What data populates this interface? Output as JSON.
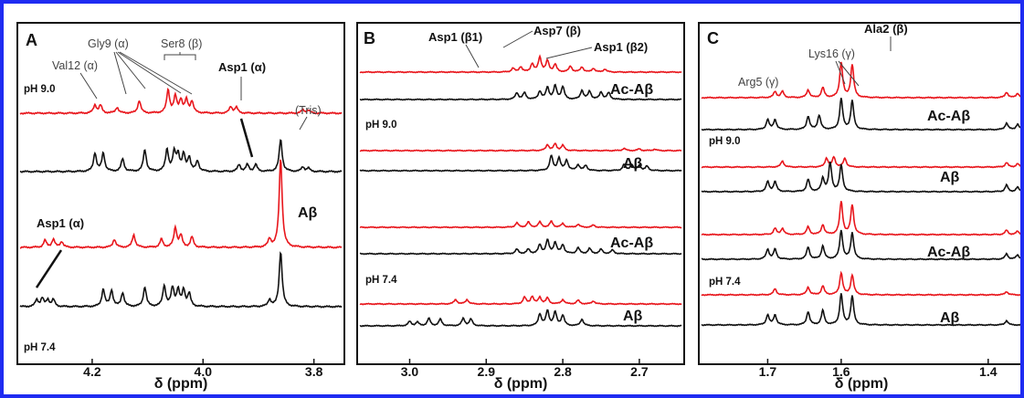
{
  "colors": {
    "frame": "#1f2cf2",
    "red": "#e8161c",
    "black": "#111111"
  },
  "chart_data": [
    {
      "type": "line",
      "panel": "A",
      "xlabel": "δ (ppm)",
      "xlim": [
        4.33,
        3.75
      ],
      "xticks": [
        "4.2",
        "4.0",
        "3.8"
      ],
      "tick_values": [
        4.2,
        4.0,
        3.8
      ],
      "series": [
        {
          "color": "red",
          "peaks": [
            [
              4.195,
              0.35
            ],
            [
              4.185,
              0.33
            ],
            [
              4.155,
              0.25
            ],
            [
              4.115,
              0.55
            ],
            [
              4.063,
              1.0
            ],
            [
              4.05,
              0.7
            ],
            [
              4.04,
              0.55
            ],
            [
              4.03,
              0.55
            ],
            [
              4.02,
              0.5
            ],
            [
              3.95,
              0.28
            ],
            [
              3.94,
              0.25
            ],
            [
              3.82,
              0.15
            ],
            [
              3.81,
              0.13
            ]
          ]
        },
        {
          "color": "black",
          "peaks": [
            [
              4.195,
              0.8
            ],
            [
              4.18,
              0.8
            ],
            [
              4.145,
              0.55
            ],
            [
              4.105,
              0.95
            ],
            [
              4.065,
              0.95
            ],
            [
              4.052,
              0.8
            ],
            [
              4.045,
              0.7
            ],
            [
              4.035,
              0.7
            ],
            [
              4.025,
              0.6
            ],
            [
              4.01,
              0.45
            ],
            [
              3.935,
              0.3
            ],
            [
              3.92,
              0.3
            ],
            [
              3.905,
              0.3
            ],
            [
              3.86,
              1.4
            ],
            [
              3.82,
              0.2
            ],
            [
              3.81,
              0.15
            ]
          ]
        },
        {
          "color": "red",
          "peaks": [
            [
              4.285,
              0.3
            ],
            [
              4.27,
              0.35
            ],
            [
              4.255,
              0.25
            ],
            [
              4.16,
              0.35
            ],
            [
              4.125,
              0.55
            ],
            [
              4.075,
              0.35
            ],
            [
              4.05,
              0.85
            ],
            [
              4.04,
              0.5
            ],
            [
              4.02,
              0.45
            ],
            [
              3.88,
              0.35
            ],
            [
              3.86,
              3.9
            ]
          ]
        },
        {
          "color": "black",
          "peaks": [
            [
              4.3,
              0.3
            ],
            [
              4.29,
              0.35
            ],
            [
              4.28,
              0.3
            ],
            [
              4.27,
              0.3
            ],
            [
              4.18,
              0.75
            ],
            [
              4.165,
              0.7
            ],
            [
              4.145,
              0.6
            ],
            [
              4.105,
              0.85
            ],
            [
              4.07,
              0.9
            ],
            [
              4.055,
              0.8
            ],
            [
              4.045,
              0.7
            ],
            [
              4.035,
              0.7
            ],
            [
              4.025,
              0.55
            ],
            [
              3.88,
              0.3
            ],
            [
              3.86,
              2.4
            ]
          ]
        }
      ]
    },
    {
      "type": "line",
      "panel": "B",
      "xlabel": "δ (ppm)",
      "xlim": [
        3.065,
        2.645
      ],
      "xticks": [
        "3.0",
        "2.9",
        "2.8",
        "2.7"
      ],
      "tick_values": [
        3.0,
        2.9,
        2.8,
        2.7
      ],
      "series": [
        {
          "color": "red",
          "peaks": [
            [
              2.865,
              0.25
            ],
            [
              2.855,
              0.35
            ],
            [
              2.84,
              0.55
            ],
            [
              2.83,
              1.0
            ],
            [
              2.82,
              0.75
            ],
            [
              2.81,
              0.5
            ],
            [
              2.79,
              0.4
            ],
            [
              2.775,
              0.35
            ],
            [
              2.76,
              0.25
            ],
            [
              2.745,
              0.2
            ]
          ]
        },
        {
          "color": "black",
          "peaks": [
            [
              2.86,
              0.45
            ],
            [
              2.85,
              0.45
            ],
            [
              2.83,
              0.55
            ],
            [
              2.82,
              0.8
            ],
            [
              2.81,
              0.9
            ],
            [
              2.8,
              0.85
            ],
            [
              2.775,
              0.6
            ],
            [
              2.765,
              0.55
            ],
            [
              2.75,
              0.5
            ],
            [
              2.74,
              0.45
            ]
          ]
        },
        {
          "color": "red",
          "peaks": [
            [
              2.82,
              0.4
            ],
            [
              2.81,
              0.45
            ],
            [
              2.8,
              0.35
            ],
            [
              2.72,
              0.15
            ],
            [
              2.7,
              0.12
            ],
            [
              2.68,
              0.1
            ]
          ]
        },
        {
          "color": "black",
          "peaks": [
            [
              2.815,
              1.0
            ],
            [
              2.805,
              0.85
            ],
            [
              2.795,
              0.7
            ],
            [
              2.78,
              0.4
            ],
            [
              2.77,
              0.35
            ],
            [
              2.72,
              0.4
            ],
            [
              2.71,
              0.4
            ],
            [
              2.7,
              0.35
            ],
            [
              2.69,
              0.3
            ]
          ]
        },
        {
          "color": "red",
          "peaks": [
            [
              2.86,
              0.3
            ],
            [
              2.845,
              0.35
            ],
            [
              2.83,
              0.35
            ],
            [
              2.815,
              0.4
            ],
            [
              2.8,
              0.25
            ],
            [
              2.78,
              0.2
            ],
            [
              2.76,
              0.15
            ]
          ]
        },
        {
          "color": "black",
          "peaks": [
            [
              2.86,
              0.3
            ],
            [
              2.845,
              0.3
            ],
            [
              2.83,
              0.6
            ],
            [
              2.82,
              0.9
            ],
            [
              2.81,
              0.75
            ],
            [
              2.8,
              0.6
            ],
            [
              2.78,
              0.4
            ],
            [
              2.765,
              0.35
            ],
            [
              2.75,
              0.3
            ],
            [
              2.735,
              0.25
            ]
          ]
        },
        {
          "color": "red",
          "peaks": [
            [
              2.94,
              0.3
            ],
            [
              2.925,
              0.3
            ],
            [
              2.85,
              0.45
            ],
            [
              2.84,
              0.5
            ],
            [
              2.83,
              0.45
            ],
            [
              2.82,
              0.4
            ],
            [
              2.8,
              0.3
            ],
            [
              2.78,
              0.25
            ],
            [
              2.76,
              0.2
            ]
          ]
        },
        {
          "color": "black",
          "peaks": [
            [
              3.0,
              0.3
            ],
            [
              2.99,
              0.25
            ],
            [
              2.975,
              0.5
            ],
            [
              2.96,
              0.45
            ],
            [
              2.93,
              0.5
            ],
            [
              2.92,
              0.45
            ],
            [
              2.83,
              0.8
            ],
            [
              2.82,
              1.0
            ],
            [
              2.81,
              0.9
            ],
            [
              2.8,
              0.7
            ],
            [
              2.775,
              0.45
            ]
          ]
        }
      ]
    },
    {
      "type": "line",
      "panel": "C",
      "xlabel": "δ (ppm)",
      "xlim": [
        1.79,
        1.355
      ],
      "xticks": [
        "1.7",
        "1.6",
        "1.4"
      ],
      "tick_values": [
        1.7,
        1.6,
        1.4
      ],
      "series": [
        {
          "color": "red",
          "peaks": [
            [
              1.69,
              0.28
            ],
            [
              1.68,
              0.28
            ],
            [
              1.645,
              0.35
            ],
            [
              1.625,
              0.45
            ],
            [
              1.6,
              1.6
            ],
            [
              1.585,
              1.5
            ],
            [
              1.375,
              0.25
            ],
            [
              1.36,
              0.2
            ]
          ]
        },
        {
          "color": "black",
          "peaks": [
            [
              1.7,
              0.45
            ],
            [
              1.69,
              0.45
            ],
            [
              1.645,
              0.6
            ],
            [
              1.63,
              0.65
            ],
            [
              1.6,
              1.4
            ],
            [
              1.585,
              1.3
            ],
            [
              1.375,
              0.3
            ],
            [
              1.36,
              0.25
            ]
          ]
        },
        {
          "color": "red",
          "peaks": [
            [
              1.68,
              0.28
            ],
            [
              1.62,
              0.4
            ],
            [
              1.61,
              0.45
            ],
            [
              1.595,
              0.4
            ],
            [
              1.375,
              0.2
            ],
            [
              1.36,
              0.15
            ]
          ]
        },
        {
          "color": "black",
          "peaks": [
            [
              1.7,
              0.45
            ],
            [
              1.69,
              0.45
            ],
            [
              1.645,
              0.55
            ],
            [
              1.625,
              0.6
            ],
            [
              1.615,
              1.3
            ],
            [
              1.6,
              1.2
            ],
            [
              1.375,
              0.3
            ],
            [
              1.36,
              0.2
            ]
          ]
        },
        {
          "color": "red",
          "peaks": [
            [
              1.69,
              0.28
            ],
            [
              1.68,
              0.28
            ],
            [
              1.645,
              0.35
            ],
            [
              1.625,
              0.45
            ],
            [
              1.6,
              1.5
            ],
            [
              1.585,
              1.35
            ],
            [
              1.375,
              0.2
            ],
            [
              1.36,
              0.15
            ]
          ]
        },
        {
          "color": "black",
          "peaks": [
            [
              1.7,
              0.45
            ],
            [
              1.69,
              0.45
            ],
            [
              1.645,
              0.55
            ],
            [
              1.625,
              0.6
            ],
            [
              1.6,
              1.3
            ],
            [
              1.585,
              1.2
            ],
            [
              1.375,
              0.25
            ],
            [
              1.36,
              0.2
            ]
          ]
        },
        {
          "color": "red",
          "peaks": [
            [
              1.69,
              0.28
            ],
            [
              1.645,
              0.35
            ],
            [
              1.625,
              0.4
            ],
            [
              1.6,
              1.0
            ],
            [
              1.585,
              0.9
            ],
            [
              1.375,
              0.15
            ]
          ]
        },
        {
          "color": "black",
          "peaks": [
            [
              1.7,
              0.45
            ],
            [
              1.69,
              0.45
            ],
            [
              1.645,
              0.6
            ],
            [
              1.625,
              0.65
            ],
            [
              1.6,
              1.4
            ],
            [
              1.585,
              1.3
            ],
            [
              1.375,
              0.2
            ]
          ]
        }
      ]
    }
  ],
  "panelA": {
    "letter": "A",
    "ann": {
      "val12": "Val12 (α)",
      "gly9": "Gly9 (α)",
      "ser8": "Ser8 (β)",
      "asp1_top": "Asp1 (α)",
      "asp1_bottom": "Asp1 (α)",
      "tris": "(Tris)"
    },
    "labels": {
      "ph9": "pH 9.0",
      "ph74": "pH 7.4",
      "abeta": "Aβ"
    }
  },
  "panelB": {
    "letter": "B",
    "ann": {
      "asp1b1": "Asp1 (β1)",
      "asp7b": "Asp7 (β)",
      "asp1b2": "Asp1 (β2)"
    },
    "labels": {
      "ph9": "pH 9.0",
      "ph74": "pH 7.4",
      "acab1": "Ac-Aβ",
      "ab1": "Aβ",
      "acab2": "Ac-Aβ",
      "ab2": "Aβ"
    }
  },
  "panelC": {
    "letter": "C",
    "ann": {
      "ala2": "Ala2 (β)",
      "lys16": "Lys16 (γ)",
      "arg5": "Arg5 (γ)"
    },
    "labels": {
      "ph9": "pH 9.0",
      "ph74": "pH 7.4",
      "acab1": "Ac-Aβ",
      "ab1": "Aβ",
      "acab2": "Ac-Aβ",
      "ab2": "Aβ"
    }
  }
}
